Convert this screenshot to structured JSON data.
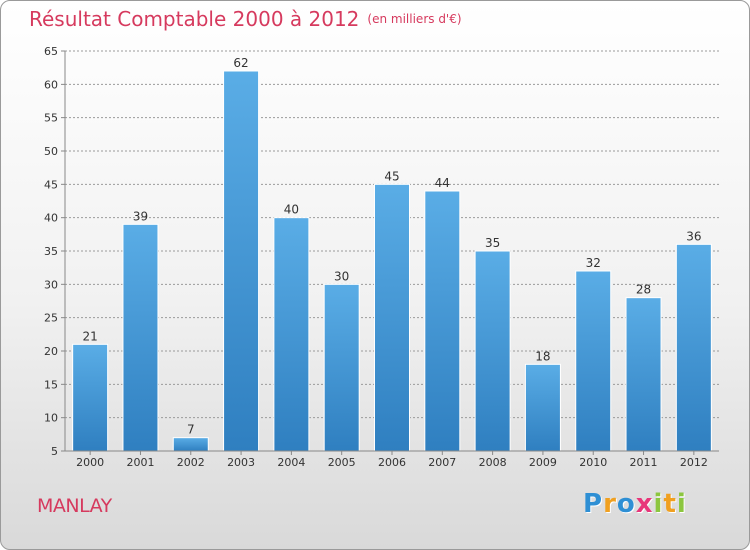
{
  "title": "Résultat Comptable 2000 à 2012",
  "subtitle": "(en milliers d'€)",
  "commune": "MANLAY",
  "logo": {
    "letters": [
      "P",
      "r",
      "o",
      "x",
      "i",
      "t",
      "i"
    ],
    "colors": [
      "#2e8fd4",
      "#f0a020",
      "#2e8fd4",
      "#e8367a",
      "#8cc63f",
      "#f0a020",
      "#8cc63f"
    ]
  },
  "colors": {
    "title": "#d63a5e",
    "bar_top": "#5aade6",
    "bar_bottom": "#2f7fc0",
    "grid": "#9a9a9a"
  },
  "chart_data": {
    "type": "bar",
    "title": "Résultat Comptable 2000 à 2012",
    "subtitle": "(en milliers d'€)",
    "xlabel": "",
    "ylabel": "",
    "categories": [
      "2000",
      "2001",
      "2002",
      "2003",
      "2004",
      "2005",
      "2006",
      "2007",
      "2008",
      "2009",
      "2010",
      "2011",
      "2012"
    ],
    "values": [
      21,
      39,
      7,
      62,
      40,
      30,
      45,
      44,
      35,
      18,
      32,
      28,
      36
    ],
    "ylim": [
      5,
      65
    ],
    "yticks": [
      5,
      10,
      15,
      20,
      25,
      30,
      35,
      40,
      45,
      50,
      55,
      60,
      65
    ],
    "grid": true,
    "data_labels": true
  }
}
